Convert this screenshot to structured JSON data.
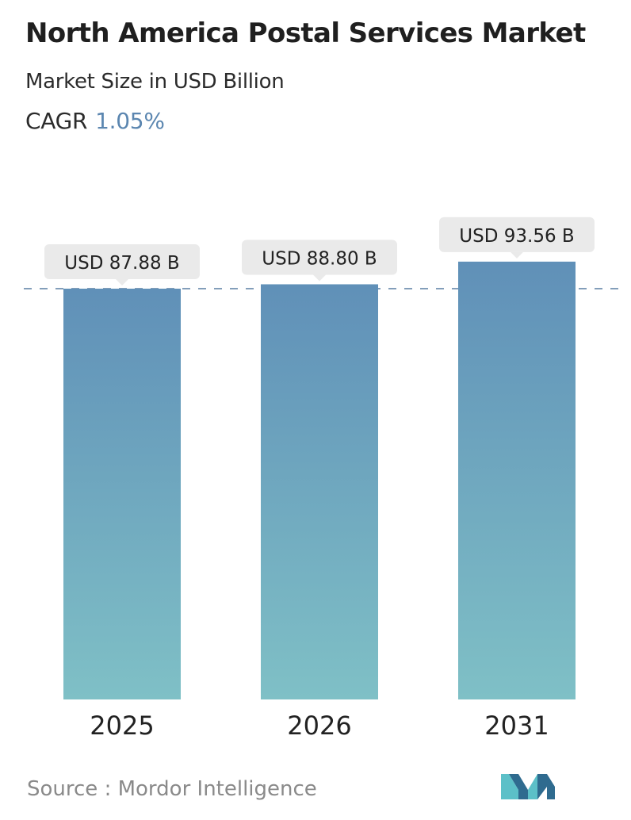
{
  "header": {
    "title": "North America Postal Services Market",
    "subtitle": "Market Size in USD Billion",
    "cagr_label": "CAGR",
    "cagr_value": "1.05%"
  },
  "chart_data": {
    "type": "bar",
    "title": "North America Postal Services Market",
    "subtitle": "Market Size in USD Billion",
    "categories": [
      "2025",
      "2026",
      "2031"
    ],
    "values": [
      87.88,
      88.8,
      93.56
    ],
    "value_labels": [
      "USD 87.88 B",
      "USD 88.80 B",
      "USD 93.56 B"
    ],
    "xlabel": "",
    "ylabel": "",
    "reference_line": "dashed line at 2025 value",
    "grid": false,
    "bar_gradient": [
      "#6090b8",
      "#7fc0c6"
    ]
  },
  "footer": {
    "source": "Source :  Mordor Intelligence",
    "logo": "mordor-intelligence-logo"
  },
  "colors": {
    "title": "#1f1f1f",
    "cagr_value": "#5b86b0",
    "dashed_line": "#5a7fa3",
    "label_bg": "#eaeaea",
    "source_text": "#8a8a8a",
    "logo_dark": "#2f6b8f",
    "logo_light": "#5cc0c8"
  }
}
